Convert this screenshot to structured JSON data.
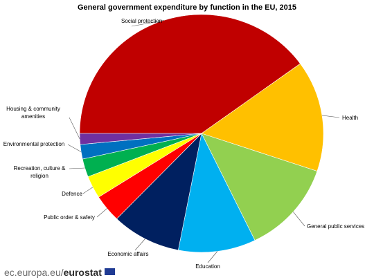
{
  "chart_data": {
    "type": "pie",
    "title": "General government expenditure by function in the EU, 2015",
    "slices": [
      {
        "label": "Social protection",
        "value": 40.5,
        "color": "#c00000"
      },
      {
        "label": "Health",
        "value": 15.3,
        "color": "#ffc000"
      },
      {
        "label": "General public services",
        "value": 12.8,
        "color": "#92d050"
      },
      {
        "label": "Education",
        "value": 10.4,
        "color": "#00b0f0"
      },
      {
        "label": "Economic affairs",
        "value": 9.3,
        "color": "#002060"
      },
      {
        "label": "Public order & safety",
        "value": 3.8,
        "color": "#ff0000"
      },
      {
        "label": "Defence",
        "value": 3.1,
        "color": "#ffff00"
      },
      {
        "label": "Recreation, culture & religion",
        "value": 2.5,
        "color": "#00b050"
      },
      {
        "label": "Environmental protection",
        "value": 2.0,
        "color": "#0070c0"
      },
      {
        "label": "Housing & community amenities",
        "value": 1.5,
        "color": "#7030a0"
      }
    ]
  },
  "footer": {
    "domain": "ec.europa.eu/",
    "brand": "eurostat"
  }
}
